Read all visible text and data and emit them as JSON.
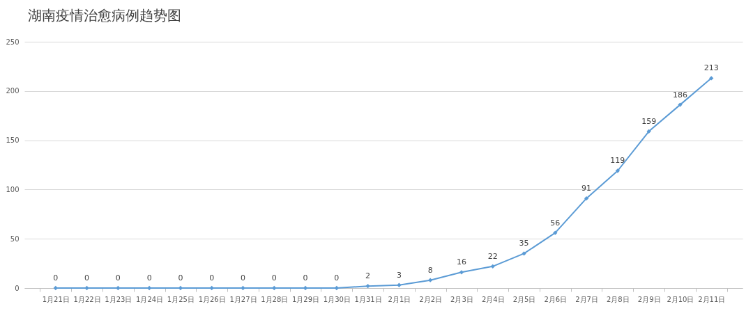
{
  "chart_data": {
    "type": "line",
    "title": "湖南疫情治愈病例趋势图",
    "categories": [
      "1月21日",
      "1月22日",
      "1月23日",
      "1月24日",
      "1月25日",
      "1月26日",
      "1月27日",
      "1月28日",
      "1月29日",
      "1月30日",
      "1月31日",
      "2月1日",
      "2月2日",
      "2月3日",
      "2月4日",
      "2月5日",
      "2月6日",
      "2月7日",
      "2月8日",
      "2月9日",
      "2月10日",
      "2月11日"
    ],
    "values": [
      0,
      0,
      0,
      0,
      0,
      0,
      0,
      0,
      0,
      0,
      2,
      3,
      8,
      16,
      22,
      35,
      56,
      91,
      119,
      159,
      186,
      213
    ],
    "color": "#5b9bd5",
    "ylim": [
      0,
      250
    ],
    "yticks": [
      0,
      50,
      100,
      150,
      200,
      250
    ],
    "grid": "y",
    "marker": "diamond",
    "data_labels": true
  }
}
